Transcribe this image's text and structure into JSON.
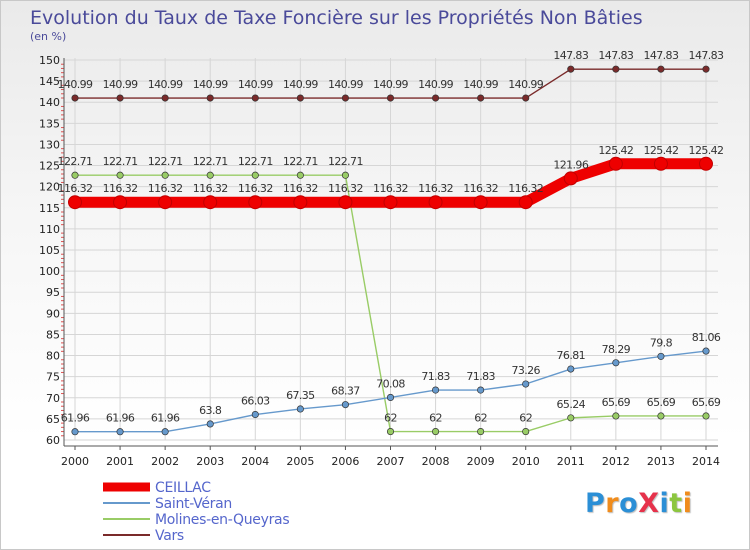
{
  "chart_data": {
    "type": "line",
    "title": "Evolution du Taux de Taxe Foncière sur les Propriétés Non Bâties",
    "ylabel": "(en %)",
    "ylim": [
      60,
      150
    ],
    "yticks": [
      "60",
      "65",
      "70",
      "75",
      "80",
      "85",
      "90",
      "95",
      "100",
      "105",
      "110",
      "115",
      "120",
      "125",
      "130",
      "135",
      "140",
      "145",
      "150"
    ],
    "categories": [
      "2000",
      "2001",
      "2002",
      "2003",
      "2004",
      "2005",
      "2006",
      "2007",
      "2008",
      "2009",
      "2010",
      "2011",
      "2012",
      "2013",
      "2014"
    ],
    "series": [
      {
        "name": "CEILLAC",
        "color": "#ee0000",
        "values": [
          116.32,
          116.32,
          116.32,
          116.32,
          116.32,
          116.32,
          116.32,
          116.32,
          116.32,
          116.32,
          116.32,
          121.96,
          125.42,
          125.42,
          125.42
        ],
        "labels": [
          "116.32",
          "116.32",
          "116.32",
          "116.32",
          "116.32",
          "116.32",
          "116.32",
          "116.32",
          "116.32",
          "116.32",
          "116.32",
          "121.96",
          "125.42",
          "125.42",
          "125.42"
        ]
      },
      {
        "name": "Saint-Véran",
        "color": "#6699cc",
        "values": [
          61.96,
          61.96,
          61.96,
          63.8,
          66.03,
          67.35,
          68.37,
          70.08,
          71.83,
          71.83,
          73.26,
          76.81,
          78.29,
          79.8,
          81.06
        ],
        "labels": [
          "61.96",
          "61.96",
          "61.96",
          "63.8",
          "66.03",
          "67.35",
          "68.37",
          "70.08",
          "71.83",
          "71.83",
          "73.26",
          "76.81",
          "78.29",
          "79.8",
          "81.06"
        ]
      },
      {
        "name": "Molines-en-Queyras",
        "color": "#99cc66",
        "values": [
          122.71,
          122.71,
          122.71,
          122.71,
          122.71,
          122.71,
          122.71,
          62,
          62,
          62,
          62,
          65.24,
          65.69,
          65.69,
          65.69
        ],
        "labels": [
          "122.71",
          "122.71",
          "122.71",
          "122.71",
          "122.71",
          "122.71",
          "122.71",
          "62",
          "62",
          "62",
          "62",
          "65.24",
          "65.69",
          "65.69",
          "65.69"
        ]
      },
      {
        "name": "Vars",
        "color": "#7a2a2a",
        "values": [
          140.99,
          140.99,
          140.99,
          140.99,
          140.99,
          140.99,
          140.99,
          140.99,
          140.99,
          140.99,
          140.99,
          147.83,
          147.83,
          147.83,
          147.83
        ],
        "labels": [
          "140.99",
          "140.99",
          "140.99",
          "140.99",
          "140.99",
          "140.99",
          "140.99",
          "140.99",
          "140.99",
          "140.99",
          "140.99",
          "147.83",
          "147.83",
          "147.83",
          "147.83"
        ]
      }
    ]
  },
  "logo": {
    "text": "ProXiti",
    "colors": [
      "#2b8fd6",
      "#f08c1c",
      "#2b8fd6",
      "#e6324b",
      "#2b8fd6",
      "#8cc63f",
      "#f08c1c"
    ]
  }
}
